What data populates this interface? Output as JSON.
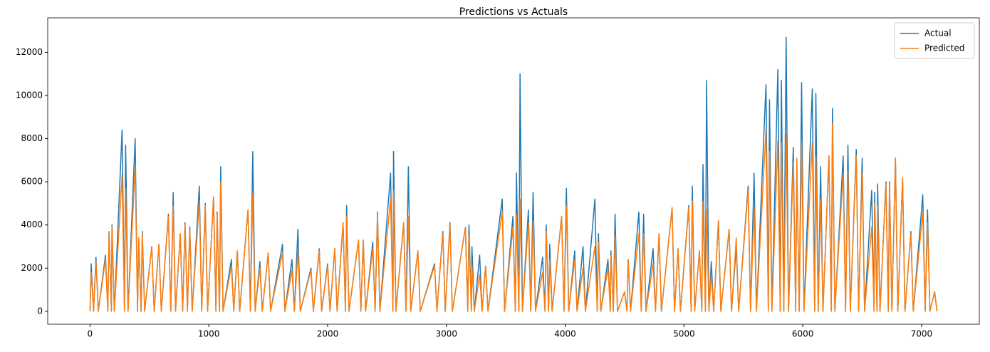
{
  "chart_data": {
    "type": "line",
    "title": "Predictions vs Actuals",
    "x": [
      0,
      10,
      30,
      50,
      70,
      130,
      150,
      160,
      180,
      185,
      205,
      270,
      290,
      300,
      320,
      380,
      400,
      410,
      430,
      440,
      460,
      520,
      540,
      580,
      600,
      660,
      680,
      700,
      720,
      760,
      780,
      800,
      820,
      840,
      860,
      920,
      940,
      970,
      990,
      1040,
      1060,
      1070,
      1090,
      1100,
      1120,
      1190,
      1210,
      1240,
      1260,
      1330,
      1350,
      1370,
      1390,
      1430,
      1450,
      1500,
      1520,
      1620,
      1640,
      1700,
      1720,
      1750,
      1770,
      1860,
      1880,
      1930,
      1950,
      2000,
      2020,
      2060,
      2080,
      2130,
      2150,
      2160,
      2180,
      2260,
      2280,
      2300,
      2320,
      2380,
      2400,
      2420,
      2440,
      2530,
      2550,
      2555,
      2575,
      2640,
      2660,
      2680,
      2700,
      2760,
      2780,
      2900,
      2920,
      2970,
      2990,
      3030,
      3050,
      3160,
      3180,
      3190,
      3210,
      3215,
      3235,
      3280,
      3300,
      3330,
      3350,
      3470,
      3490,
      3560,
      3580,
      3590,
      3610,
      3620,
      3640,
      3690,
      3710,
      3730,
      3750,
      3810,
      3830,
      3840,
      3860,
      3870,
      3890,
      3970,
      3990,
      4010,
      4030,
      4080,
      4100,
      4150,
      4170,
      4250,
      4270,
      4280,
      4300,
      4360,
      4380,
      4385,
      4405,
      4420,
      4440,
      4500,
      4520,
      4530,
      4550,
      4620,
      4640,
      4660,
      4680,
      4740,
      4760,
      4790,
      4810,
      4900,
      4920,
      4950,
      4970,
      5040,
      5060,
      5070,
      5090,
      5130,
      5150,
      5160,
      5180,
      5190,
      5210,
      5230,
      5250,
      5290,
      5310,
      5380,
      5400,
      5440,
      5460,
      5540,
      5560,
      5590,
      5610,
      5690,
      5710,
      5720,
      5740,
      5790,
      5810,
      5820,
      5840,
      5860,
      5880,
      5920,
      5940,
      5950,
      5970,
      5990,
      6010,
      6080,
      6100,
      6110,
      6130,
      6150,
      6170,
      6220,
      6240,
      6250,
      6270,
      6340,
      6360,
      6380,
      6400,
      6450,
      6470,
      6500,
      6520,
      6580,
      6600,
      6605,
      6625,
      6630,
      6650,
      6700,
      6720,
      6730,
      6750,
      6780,
      6800,
      6840,
      6860,
      6910,
      6930,
      7010,
      7030,
      7050,
      7070,
      7110,
      7130
    ],
    "series": [
      {
        "name": "Actual",
        "color": "#1f77b4",
        "values": [
          0,
          2200,
          0,
          2500,
          0,
          2600,
          0,
          3700,
          0,
          4000,
          0,
          8400,
          0,
          7700,
          0,
          8000,
          0,
          3400,
          0,
          3700,
          0,
          3000,
          0,
          3100,
          0,
          4500,
          0,
          5500,
          0,
          3600,
          0,
          4100,
          0,
          3900,
          0,
          5800,
          0,
          5000,
          0,
          5300,
          0,
          4600,
          0,
          6700,
          0,
          2400,
          0,
          2800,
          0,
          4700,
          0,
          7400,
          0,
          2300,
          0,
          2700,
          0,
          3100,
          0,
          2400,
          0,
          3800,
          0,
          2000,
          0,
          2900,
          0,
          2200,
          0,
          2900,
          0,
          4100,
          0,
          4900,
          0,
          3300,
          0,
          3300,
          0,
          3200,
          0,
          4600,
          0,
          6400,
          0,
          7400,
          0,
          4100,
          0,
          6700,
          0,
          2800,
          0,
          2200,
          0,
          3700,
          0,
          4100,
          0,
          3900,
          0,
          4000,
          0,
          3000,
          0,
          2600,
          0,
          2100,
          0,
          5200,
          0,
          4400,
          0,
          6400,
          0,
          11000,
          0,
          4700,
          0,
          5500,
          0,
          2500,
          0,
          4000,
          0,
          3100,
          0,
          4400,
          0,
          5700,
          0,
          2800,
          0,
          3000,
          0,
          5200,
          0,
          3600,
          0,
          2400,
          0,
          2800,
          0,
          4500,
          0,
          900,
          0,
          2400,
          0,
          4600,
          0,
          4500,
          0,
          2900,
          0,
          3600,
          0,
          4800,
          0,
          2900,
          0,
          4900,
          0,
          5800,
          0,
          2800,
          0,
          6800,
          0,
          10700,
          0,
          2300,
          0,
          4200,
          0,
          3800,
          0,
          3000,
          0,
          5800,
          0,
          6400,
          0,
          10500,
          0,
          9800,
          0,
          11200,
          0,
          10700,
          0,
          12700,
          0,
          7600,
          0,
          6800,
          0,
          10600,
          0,
          10300,
          0,
          10100,
          0,
          6700,
          0,
          7200,
          0,
          9400,
          0,
          7200,
          0,
          7700,
          0,
          7500,
          0,
          7100,
          0,
          5600,
          0,
          5500,
          0,
          5900,
          0,
          6000,
          0,
          6000,
          0,
          7100,
          0,
          6200,
          0,
          3700,
          0,
          5400,
          0,
          4700,
          0,
          900,
          0
        ]
      },
      {
        "name": "Predicted",
        "color": "#ff7f0e",
        "values": [
          0,
          1800,
          0,
          2300,
          0,
          2400,
          0,
          3700,
          0,
          3900,
          0,
          6300,
          0,
          5700,
          0,
          6700,
          0,
          3400,
          0,
          3600,
          0,
          3000,
          0,
          3100,
          0,
          4400,
          0,
          4900,
          0,
          3600,
          0,
          4000,
          0,
          3800,
          0,
          5100,
          0,
          4900,
          0,
          5300,
          0,
          4500,
          0,
          6000,
          0,
          2100,
          0,
          2800,
          0,
          4700,
          0,
          5400,
          0,
          2000,
          0,
          2700,
          0,
          2700,
          0,
          1900,
          0,
          2800,
          0,
          1900,
          0,
          2800,
          0,
          2100,
          0,
          2900,
          0,
          4100,
          0,
          4400,
          0,
          3300,
          0,
          3300,
          0,
          2900,
          0,
          4500,
          0,
          5200,
          0,
          5600,
          0,
          4100,
          0,
          4400,
          0,
          2800,
          0,
          2100,
          0,
          3600,
          0,
          4000,
          0,
          3900,
          0,
          3500,
          0,
          2100,
          0,
          1700,
          0,
          2100,
          0,
          4600,
          0,
          3900,
          0,
          4500,
          0,
          5200,
          0,
          4100,
          0,
          4200,
          0,
          1800,
          0,
          3700,
          0,
          2400,
          0,
          4400,
          0,
          4900,
          0,
          2400,
          0,
          2000,
          0,
          3000,
          0,
          3200,
          0,
          2000,
          0,
          2600,
          0,
          3500,
          0,
          900,
          0,
          2400,
          0,
          3600,
          0,
          3600,
          0,
          2200,
          0,
          3600,
          0,
          4800,
          0,
          2900,
          0,
          4800,
          0,
          5100,
          0,
          2800,
          0,
          5100,
          0,
          4700,
          0,
          1700,
          0,
          4200,
          0,
          3800,
          0,
          3400,
          0,
          5600,
          0,
          4800,
          0,
          8400,
          0,
          7400,
          0,
          7900,
          0,
          7800,
          0,
          8200,
          0,
          6900,
          0,
          7100,
          0,
          7800,
          0,
          7800,
          0,
          7200,
          0,
          5200,
          0,
          7200,
          0,
          8700,
          0,
          6400,
          0,
          6500,
          0,
          7200,
          0,
          6400,
          0,
          3900,
          0,
          5000,
          0,
          4900,
          0,
          5900,
          0,
          5900,
          0,
          7100,
          0,
          6200,
          0,
          3600,
          0,
          4600,
          0,
          4100,
          0,
          900,
          0
        ]
      }
    ],
    "xlim": [
      -356,
      7486
    ],
    "ylim": [
      -600,
      13600
    ],
    "xticks": [
      0,
      1000,
      2000,
      3000,
      4000,
      5000,
      6000,
      7000
    ],
    "yticks": [
      0,
      2000,
      4000,
      6000,
      8000,
      10000,
      12000
    ],
    "legend": "upper right"
  }
}
